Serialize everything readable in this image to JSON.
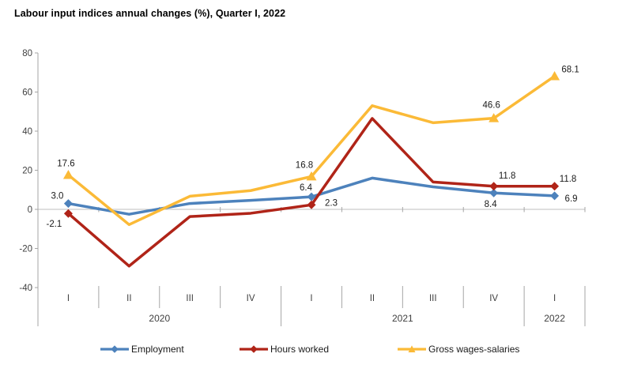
{
  "title": "Labour input indices annual changes (%), Quarter I, 2022",
  "chart_data": {
    "type": "line",
    "title": "Labour input indices annual changes (%), Quarter I, 2022",
    "x_categories": [
      "I",
      "II",
      "III",
      "IV",
      "I",
      "II",
      "III",
      "IV",
      "I"
    ],
    "year_groups": [
      {
        "label": "2020",
        "span": 4
      },
      {
        "label": "2021",
        "span": 4
      },
      {
        "label": "2022",
        "span": 1
      }
    ],
    "ylim": [
      -40,
      80
    ],
    "yticks": [
      80,
      60,
      40,
      20,
      0,
      -20,
      -40
    ],
    "grid": "zero-line-only",
    "legend_position": "bottom",
    "series": [
      {
        "name": "Employment",
        "color": "#4d82bc",
        "marker": "diamond",
        "values": [
          3.0,
          -2.5,
          3.0,
          4.6,
          6.4,
          16.0,
          11.5,
          8.4,
          6.9
        ],
        "labeled_points": [
          {
            "index": 0,
            "text": "3.0",
            "dx": -14,
            "dy": -10
          },
          {
            "index": 4,
            "text": "6.4",
            "dx": -7,
            "dy": -12
          },
          {
            "index": 7,
            "text": "8.4",
            "dx": -4,
            "dy": 14
          },
          {
            "index": 8,
            "text": "6.9",
            "dx": 21,
            "dy": 3
          }
        ]
      },
      {
        "name": "Hours worked",
        "color": "#b02418",
        "marker": "diamond",
        "values": [
          -2.1,
          -29.0,
          -3.7,
          -2.0,
          2.3,
          46.5,
          14.0,
          11.8,
          11.8
        ],
        "labeled_points": [
          {
            "index": 0,
            "text": "-2.1",
            "dx": -18,
            "dy": 13
          },
          {
            "index": 4,
            "text": "2.3",
            "dx": 25,
            "dy": -3
          },
          {
            "index": 7,
            "text": "11.8",
            "dx": 17,
            "dy": -14
          },
          {
            "index": 8,
            "text": "11.8",
            "dx": 17,
            "dy": -10
          }
        ]
      },
      {
        "name": "Gross wages-salaries",
        "color": "#fbba37",
        "marker": "triangle",
        "values": [
          17.6,
          -7.8,
          6.7,
          9.6,
          16.8,
          53.0,
          44.3,
          46.6,
          68.1
        ],
        "labeled_points": [
          {
            "index": 0,
            "text": "17.6",
            "dx": -3,
            "dy": -15
          },
          {
            "index": 4,
            "text": "16.8",
            "dx": -9,
            "dy": -15
          },
          {
            "index": 7,
            "text": "46.6",
            "dx": -3,
            "dy": -17
          },
          {
            "index": 8,
            "text": "68.1",
            "dx": 20,
            "dy": -9
          }
        ]
      }
    ],
    "colors": {
      "axis": "#a6a6a6",
      "gridline": "#bfbfbf",
      "tick_label": "#404040",
      "data_label": "#1a1a1a"
    }
  }
}
